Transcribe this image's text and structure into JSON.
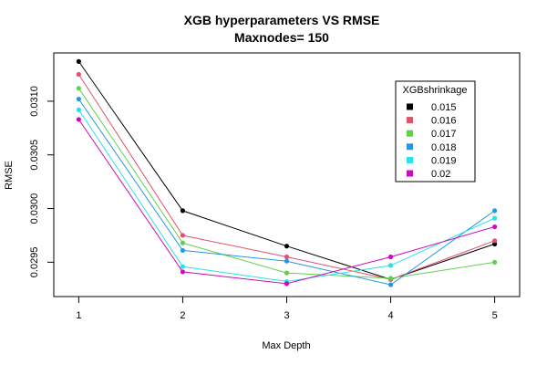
{
  "chart_data": {
    "type": "line",
    "title": "XGB hyperparameters VS RMSE",
    "subtitle": "Maxnodes= 150",
    "xlabel": "Max Depth",
    "ylabel": "RMSE",
    "x": [
      1,
      2,
      3,
      4,
      5
    ],
    "x_tick_labels": [
      "1",
      "2",
      "3",
      "4",
      "5"
    ],
    "y_ticks": [
      0.0295,
      0.03,
      0.0305,
      0.031
    ],
    "y_tick_labels": [
      "0.0295",
      "0.0300",
      "0.0305",
      "0.0310"
    ],
    "xlim": [
      0.76,
      5.24
    ],
    "ylim": [
      0.02918,
      0.03145
    ],
    "legend": {
      "title": "XGBshrinkage",
      "placement": "top-right"
    },
    "series": [
      {
        "name": "0.015",
        "color": "#000000",
        "values": [
          0.03137,
          0.02998,
          0.02965,
          0.02934,
          0.02967
        ]
      },
      {
        "name": "0.016",
        "color": "#DF536B",
        "values": [
          0.03125,
          0.02975,
          0.02955,
          0.02934,
          0.0297
        ]
      },
      {
        "name": "0.017",
        "color": "#61D04F",
        "values": [
          0.03112,
          0.02968,
          0.0294,
          0.02935,
          0.0295
        ]
      },
      {
        "name": "0.018",
        "color": "#2297E6",
        "values": [
          0.03102,
          0.02961,
          0.02951,
          0.02929,
          0.02998
        ]
      },
      {
        "name": "0.019",
        "color": "#28E2E5",
        "values": [
          0.03092,
          0.02946,
          0.02932,
          0.02947,
          0.02991
        ]
      },
      {
        "name": "0.02",
        "color": "#CD0BBC",
        "values": [
          0.03083,
          0.02941,
          0.0293,
          0.02955,
          0.02983
        ]
      }
    ]
  }
}
